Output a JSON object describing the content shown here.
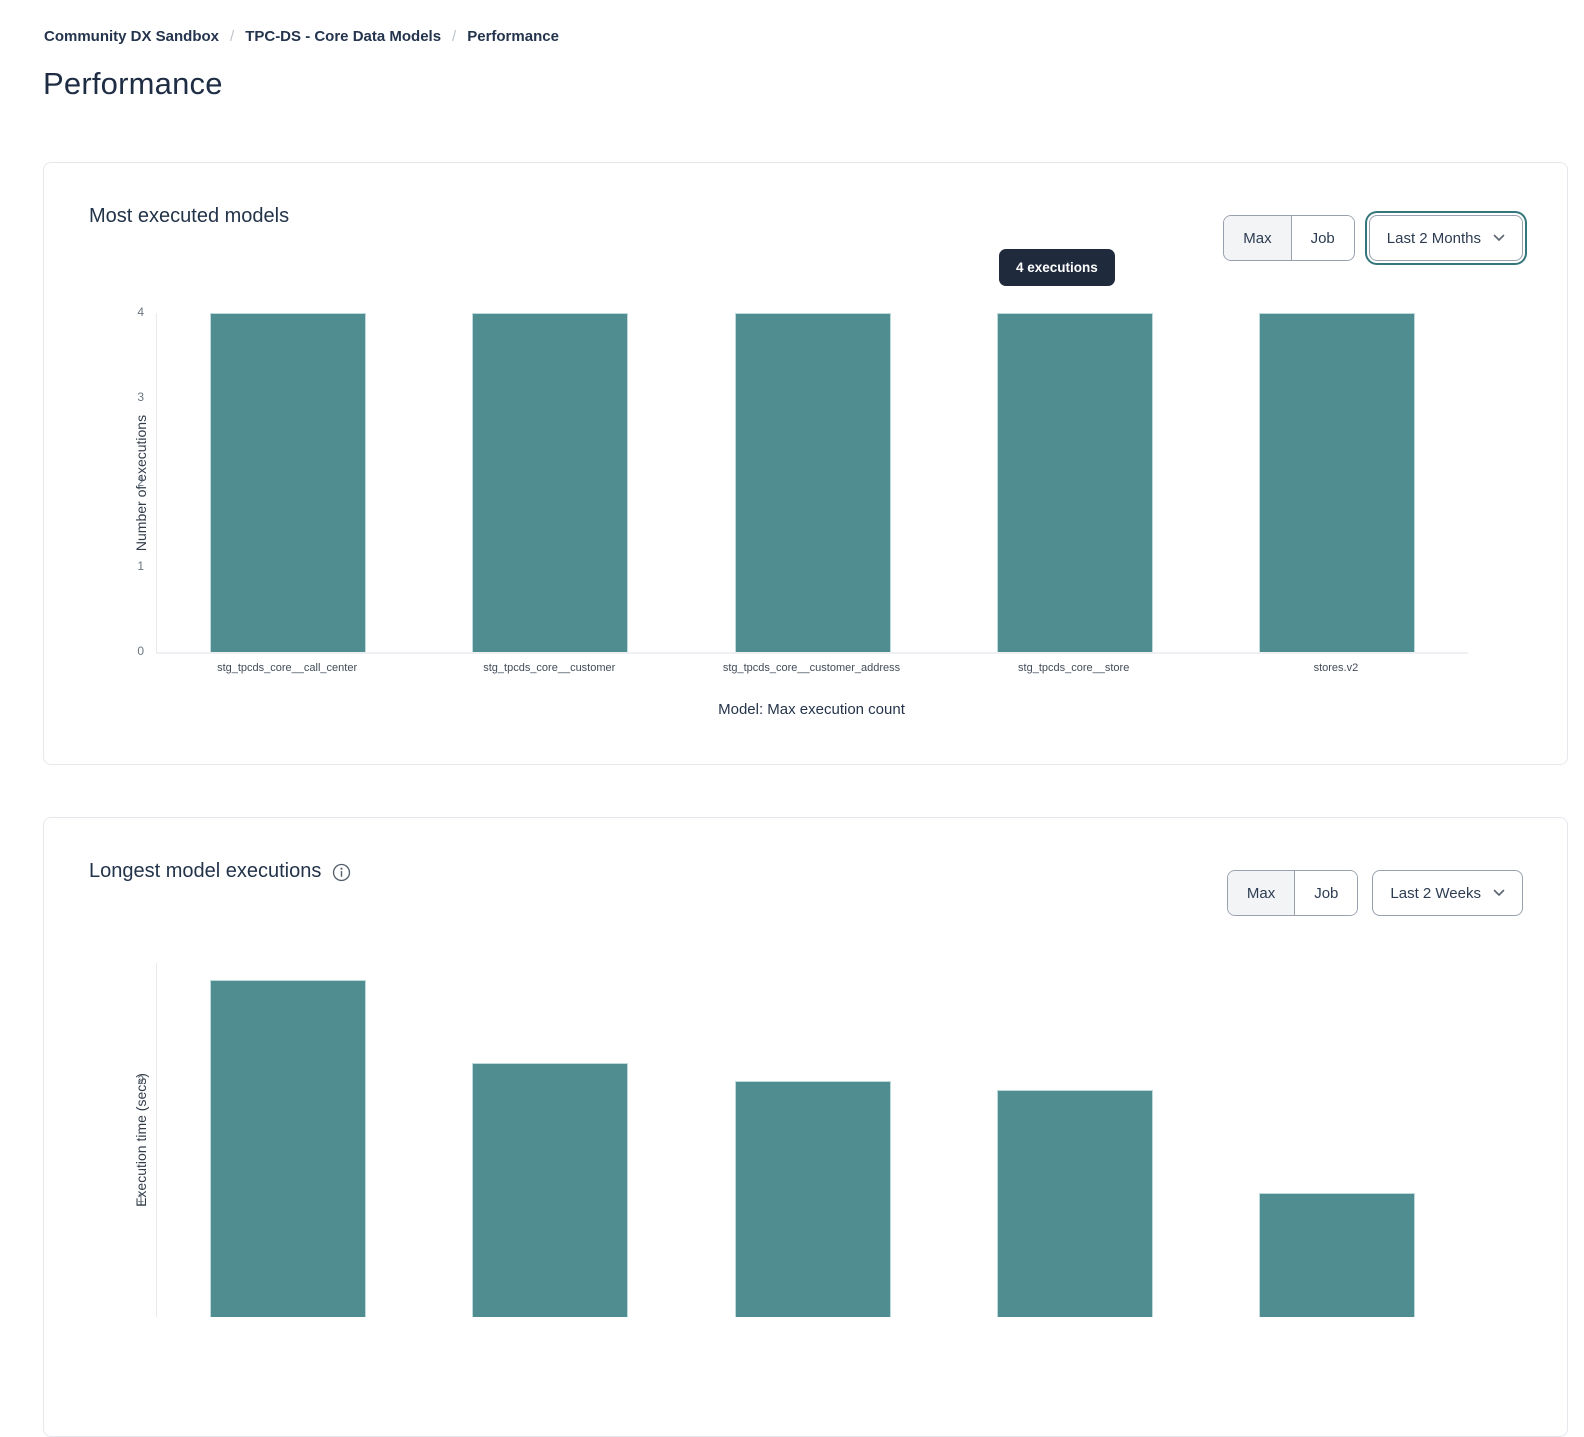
{
  "breadcrumb": {
    "items": [
      "Community DX Sandbox",
      "TPC-DS - Core Data Models",
      "Performance"
    ],
    "separator": "/"
  },
  "page": {
    "title": "Performance"
  },
  "cards": [
    {
      "title": "Most executed models",
      "tooltip": "4 executions",
      "controls": {
        "max": "Max",
        "job": "Job",
        "range": "Last 2 Months"
      }
    },
    {
      "title": "Longest model executions",
      "controls": {
        "max": "Max",
        "job": "Job",
        "range": "Last 2 Weeks"
      }
    }
  ],
  "chart_data": [
    {
      "type": "bar",
      "title": "Most executed models",
      "categories": [
        "stg_tpcds_core__call_center",
        "stg_tpcds_core__customer",
        "stg_tpcds_core__customer_address",
        "stg_tpcds_core__store",
        "stores.v2"
      ],
      "values": [
        4,
        4,
        4,
        4,
        4
      ],
      "xlabel": "Model: Max execution count",
      "ylabel": "Number of executions",
      "ylim": [
        0,
        4
      ],
      "yticks": [
        0,
        1,
        2,
        3,
        4
      ],
      "bar_color": "#4f8d91",
      "grid": false,
      "legend": false,
      "tooltip": "4 executions"
    },
    {
      "type": "bar",
      "title": "Longest model executions",
      "categories": [
        "",
        "",
        "",
        "",
        ""
      ],
      "values": [
        2.86,
        2.15,
        2.0,
        1.92,
        1.05
      ],
      "ylabel": "Execution time (secs)",
      "ylim": [
        0,
        3
      ],
      "yticks": [
        1,
        2
      ],
      "bar_color": "#4f8d91",
      "grid": false,
      "legend": false,
      "truncated_bottom": true
    }
  ],
  "colors": {
    "bar": "#4f8d91",
    "bar_edge": "#bfdadb",
    "tooltip_bg": "#1f2b3d",
    "accent_ring": "#35767b",
    "navy_text": "#22334a",
    "card_border": "#e4e7ec"
  }
}
